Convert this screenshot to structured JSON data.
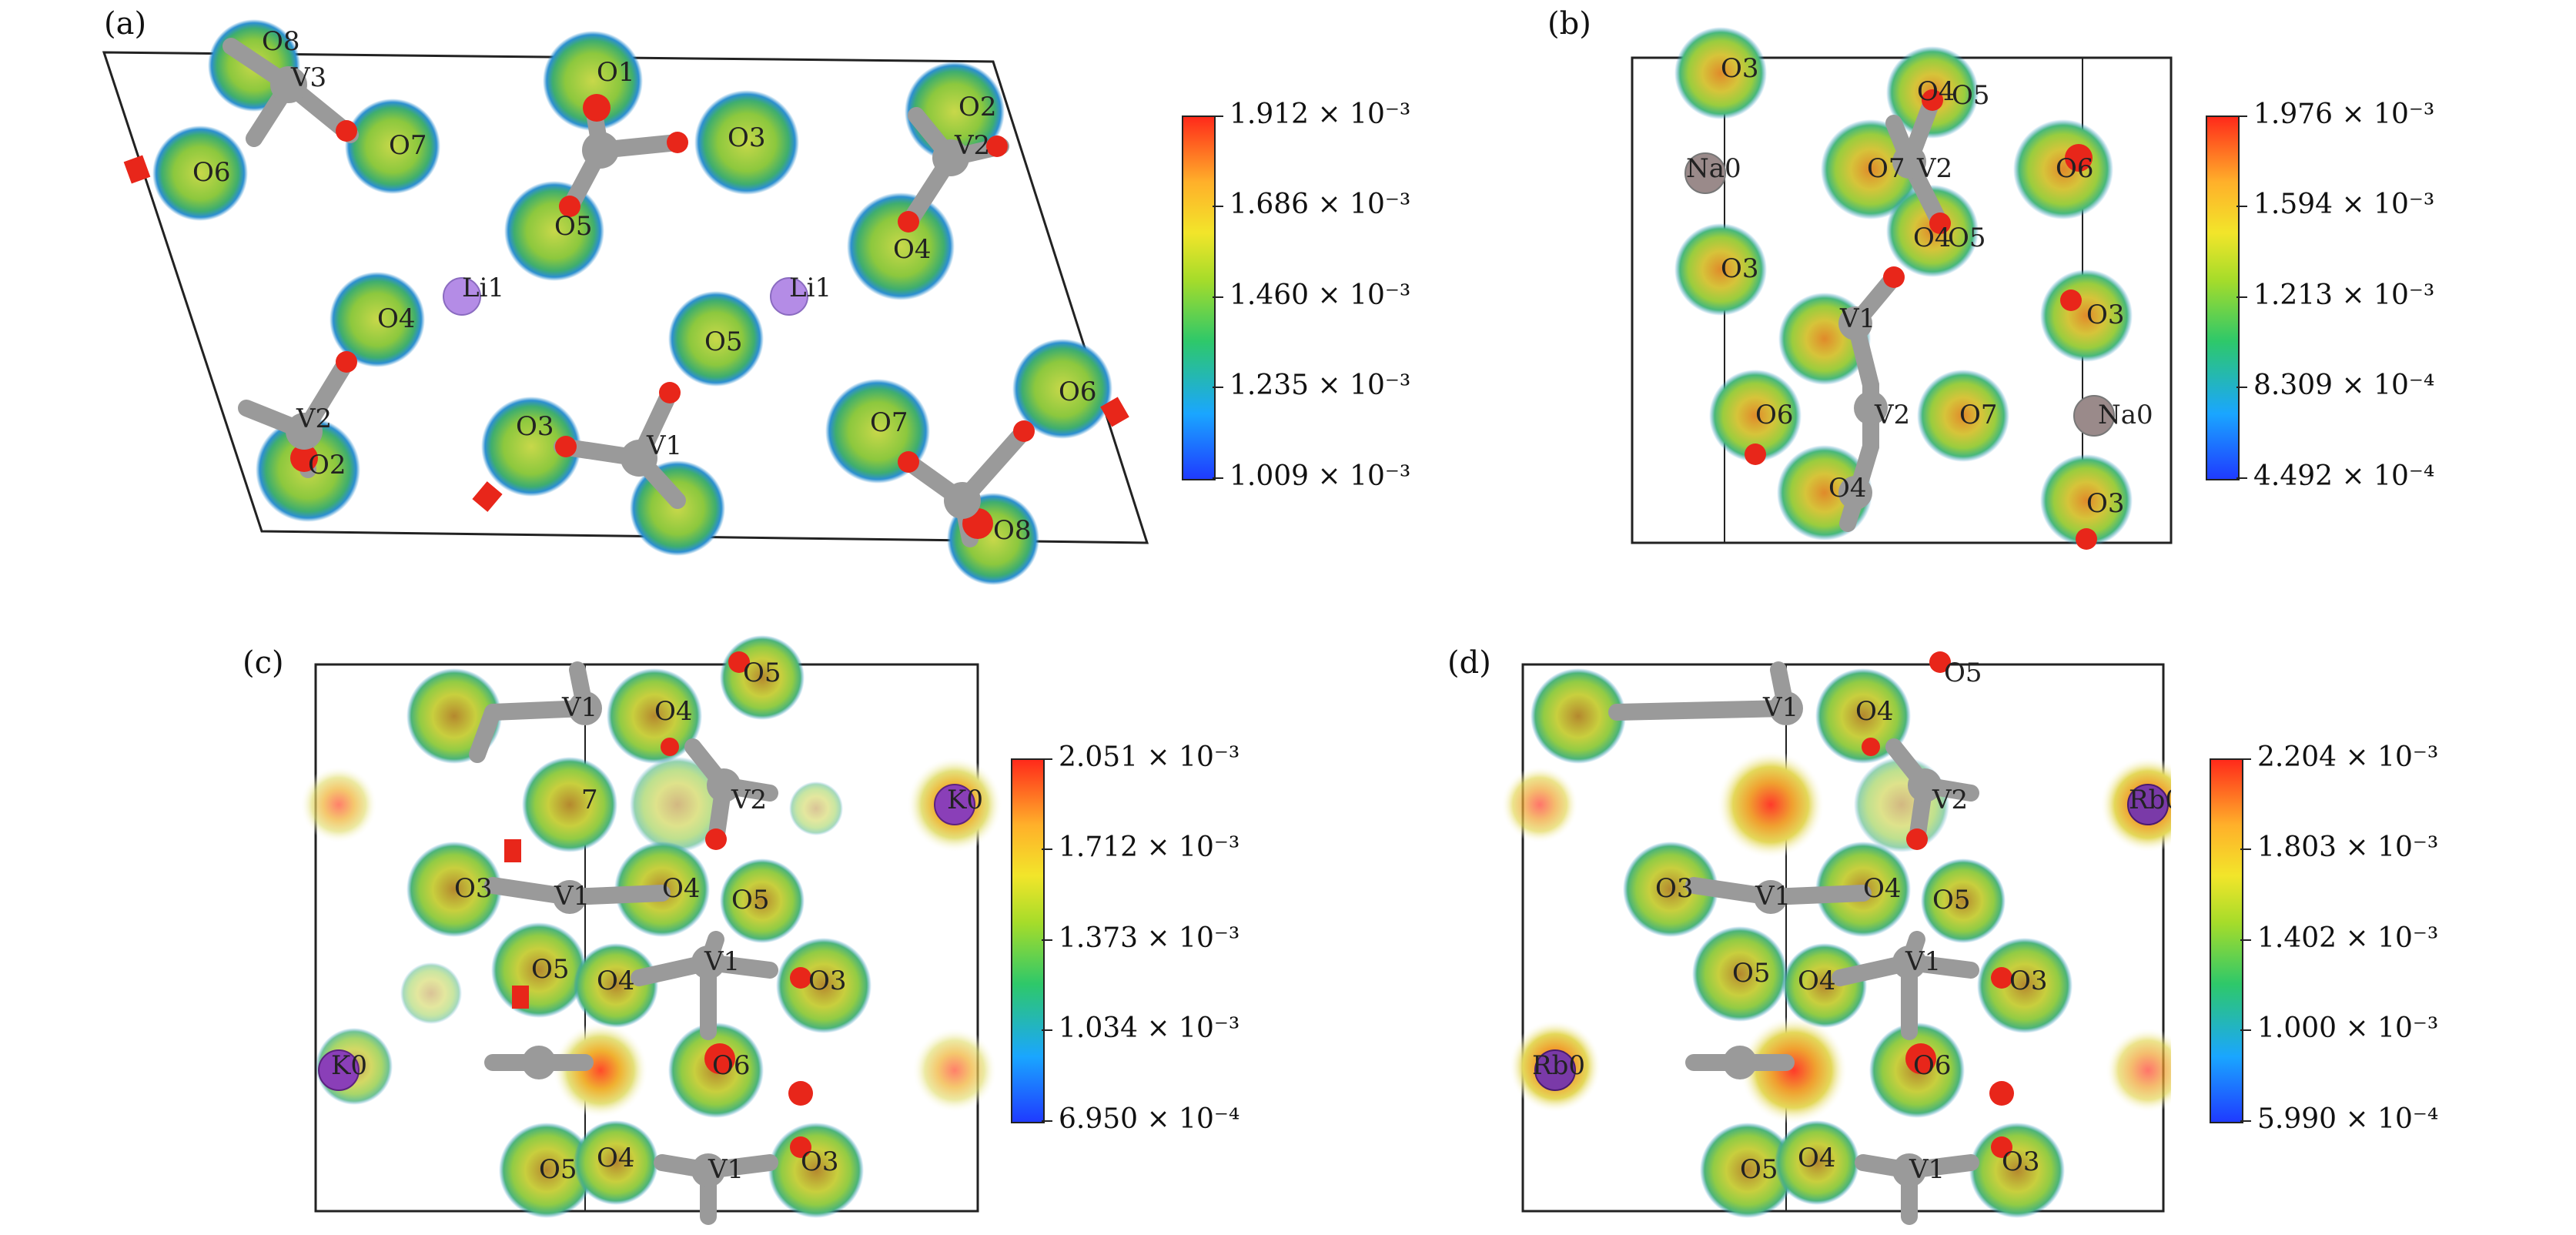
{
  "panels": [
    {
      "id": "a",
      "label": "(a)",
      "colorbar_ticks": [
        "1.912 × 10⁻³",
        "1.686 × 10⁻³",
        "1.460 × 10⁻³",
        "1.235 × 10⁻³",
        "1.009 × 10⁻³"
      ],
      "atom_labels": [
        "O8",
        "V3",
        "O1",
        "O2",
        "V2",
        "O6",
        "O7",
        "O3",
        "O5",
        "Li1",
        "Li1",
        "O4",
        "O4",
        "O5",
        "O6",
        "V2",
        "O2",
        "O3",
        "V1",
        "O7",
        "O8"
      ]
    },
    {
      "id": "b",
      "label": "(b)",
      "colorbar_ticks": [
        "1.976 × 10⁻³",
        "1.594 × 10⁻³",
        "1.213 × 10⁻³",
        "8.309 × 10⁻⁴",
        "4.492 × 10⁻⁴"
      ],
      "atom_labels": [
        "O3",
        "O4",
        "O5",
        "Na0",
        "O7",
        "V2",
        "O6",
        "O3",
        "O4",
        "O5",
        "V1",
        "O3",
        "O6",
        "V2",
        "O7",
        "Na0",
        "O4",
        "O3"
      ]
    },
    {
      "id": "c",
      "label": "(c)",
      "colorbar_ticks": [
        "2.051 × 10⁻³",
        "1.712 × 10⁻³",
        "1.373 × 10⁻³",
        "1.034 × 10⁻³",
        "6.950 × 10⁻⁴"
      ],
      "atom_labels": [
        "O5",
        "V1",
        "O4",
        "7",
        "V2",
        "K0",
        "O3",
        "V1",
        "O4",
        "O5",
        "O5",
        "O4",
        "V1",
        "O3",
        "K0",
        "O6",
        "O4",
        "O3",
        "O5",
        "V1"
      ]
    },
    {
      "id": "d",
      "label": "(d)",
      "colorbar_ticks": [
        "2.204 × 10⁻³",
        "1.803 × 10⁻³",
        "1.402 × 10⁻³",
        "1.000 × 10⁻³",
        "5.990 × 10⁻⁴"
      ],
      "atom_labels": [
        "O5",
        "V1",
        "O4",
        "V2",
        "Rb0",
        "O3",
        "V1",
        "O4",
        "O5",
        "O5",
        "O4",
        "V1",
        "O3",
        "Rb0",
        "O6",
        "O3",
        "O5",
        "O4",
        "V1"
      ]
    }
  ]
}
